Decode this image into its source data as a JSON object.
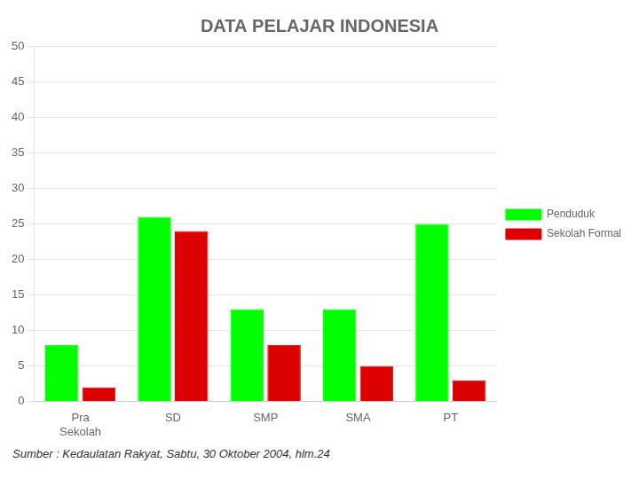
{
  "chart_data": {
    "type": "bar",
    "title": "DATA PELAJAR INDONESIA",
    "categories": [
      "Pra\nSekolah",
      "SD",
      "SMP",
      "SMA",
      "PT"
    ],
    "series": [
      {
        "name": "Penduduk",
        "color": "#00ff00",
        "values": [
          8,
          26,
          13,
          13,
          25
        ]
      },
      {
        "name": "Sekolah Formal",
        "color": "#dd0000",
        "values": [
          2,
          24,
          8,
          5,
          3
        ]
      }
    ],
    "ylim": [
      0,
      50
    ],
    "yticks": [
      0,
      5,
      10,
      15,
      20,
      25,
      30,
      35,
      40,
      45,
      50
    ],
    "grid": true,
    "legend": "right",
    "annotations": [
      "Sumber : Kedaulatan Rakyat, Sabtu, 30 Oktober 2004, hlm.24"
    ]
  }
}
